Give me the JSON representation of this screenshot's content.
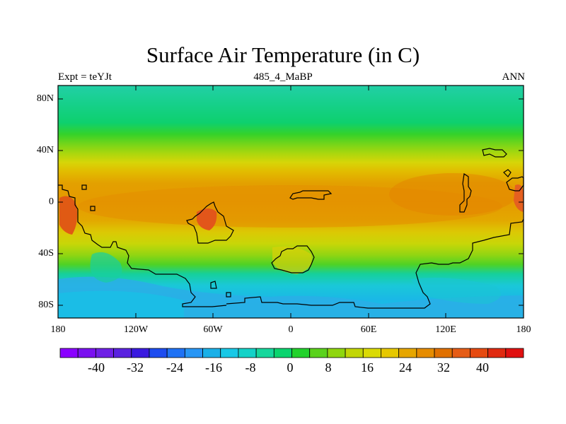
{
  "header": {
    "title": "Surface Air Temperature (in C)",
    "left": "Expt = teYJt",
    "center": "485_4_MaBP",
    "right": "ANN"
  },
  "map": {
    "lat_labels": [
      "80N",
      "40N",
      "0",
      "40S",
      "80S"
    ],
    "lon_labels": [
      "180",
      "120W",
      "60W",
      "0",
      "60E",
      "120E",
      "180"
    ]
  },
  "colorbar": {
    "labels": [
      "-40",
      "-32",
      "-24",
      "-16",
      "-8",
      "0",
      "8",
      "16",
      "24",
      "32",
      "40"
    ],
    "colors": [
      "#8a00ff",
      "#7a10f0",
      "#6f20e6",
      "#5a22e0",
      "#3a1ae0",
      "#1d4cf0",
      "#1f72f5",
      "#2896f5",
      "#1ab0e8",
      "#18c8e6",
      "#14d2c8",
      "#16d79c",
      "#0ad46e",
      "#22d22c",
      "#5ad21c",
      "#8fd60e",
      "#c2d606",
      "#dada04",
      "#e6c800",
      "#e6a600",
      "#e68c00",
      "#e07000",
      "#e55c16",
      "#e64a10",
      "#e02a10",
      "#e01010"
    ]
  }
}
